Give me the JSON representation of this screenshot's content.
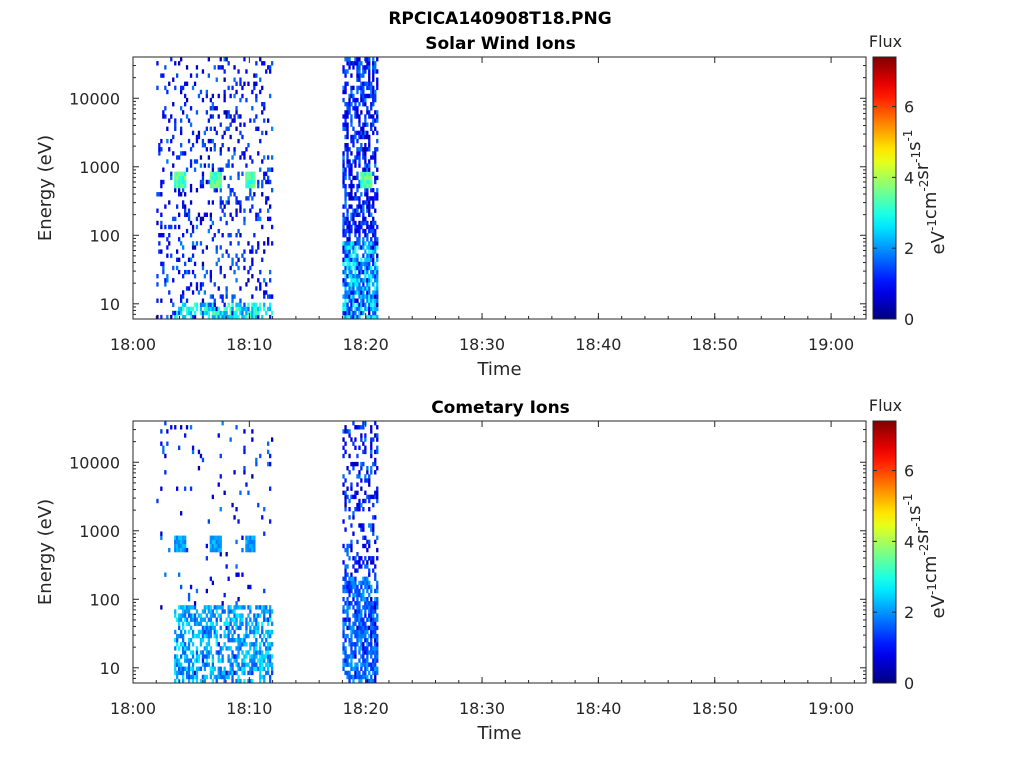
{
  "figure": {
    "title": "RPCICA140908T18.PNG",
    "colorbar_label": "Flux",
    "colorbar_unit": "eV-1cm-2sr-1s-1",
    "colormap": "jet"
  },
  "chart_data": [
    {
      "type": "heatmap",
      "title": "Solar Wind Ions",
      "xlabel": "Time",
      "ylabel": "Energy (eV)",
      "xlim": [
        "18:00",
        "19:03"
      ],
      "xticks": [
        "18:00",
        "18:10",
        "18:20",
        "18:30",
        "18:40",
        "18:50",
        "19:00"
      ],
      "yscale": "log",
      "ylim": [
        6,
        40000
      ],
      "yticks": [
        10,
        100,
        1000,
        10000
      ],
      "ytick_labels": [
        "10",
        "100",
        "1000",
        "10000"
      ],
      "clim": [
        0,
        7.4
      ],
      "cticks": [
        "0",
        "2",
        "4",
        "6"
      ],
      "grid": false,
      "data_time_ranges": [
        [
          "18:02",
          "18:12"
        ],
        [
          "18:18",
          "18:21"
        ]
      ],
      "features": [
        {
          "type": "peak",
          "times": [
            "18:04",
            "18:07",
            "18:10",
            "18:20"
          ],
          "energy_eV": 600,
          "level": 3.5
        },
        {
          "type": "band",
          "start": "18:03.5",
          "end": "18:12",
          "energy_range_eV": [
            6,
            10
          ],
          "level": 3.2
        },
        {
          "type": "band",
          "start": "18:18",
          "end": "18:21",
          "energy_range_eV": [
            6,
            80
          ],
          "level": 2.8
        }
      ]
    },
    {
      "type": "heatmap",
      "title": "Cometary Ions",
      "xlabel": "Time",
      "ylabel": "Energy (eV)",
      "xlim": [
        "18:00",
        "19:03"
      ],
      "xticks": [
        "18:00",
        "18:10",
        "18:20",
        "18:30",
        "18:40",
        "18:50",
        "19:00"
      ],
      "yscale": "log",
      "ylim": [
        6,
        40000
      ],
      "yticks": [
        10,
        100,
        1000,
        10000
      ],
      "ytick_labels": [
        "10",
        "100",
        "1000",
        "10000"
      ],
      "clim": [
        0,
        7.4
      ],
      "cticks": [
        "0",
        "2",
        "4",
        "6"
      ],
      "grid": false,
      "data_time_ranges": [
        [
          "18:02",
          "18:12"
        ],
        [
          "18:18",
          "18:21"
        ]
      ],
      "features": [
        {
          "type": "peak",
          "times": [
            "18:04",
            "18:07",
            "18:10"
          ],
          "energy_eV": 600,
          "level": 2.2
        },
        {
          "type": "band",
          "start": "18:03.5",
          "end": "18:12",
          "energy_range_eV": [
            6,
            80
          ],
          "level": 2.5
        },
        {
          "type": "band",
          "start": "18:18",
          "end": "18:21",
          "energy_range_eV": [
            6,
            200
          ],
          "level": 2.0
        }
      ]
    }
  ]
}
